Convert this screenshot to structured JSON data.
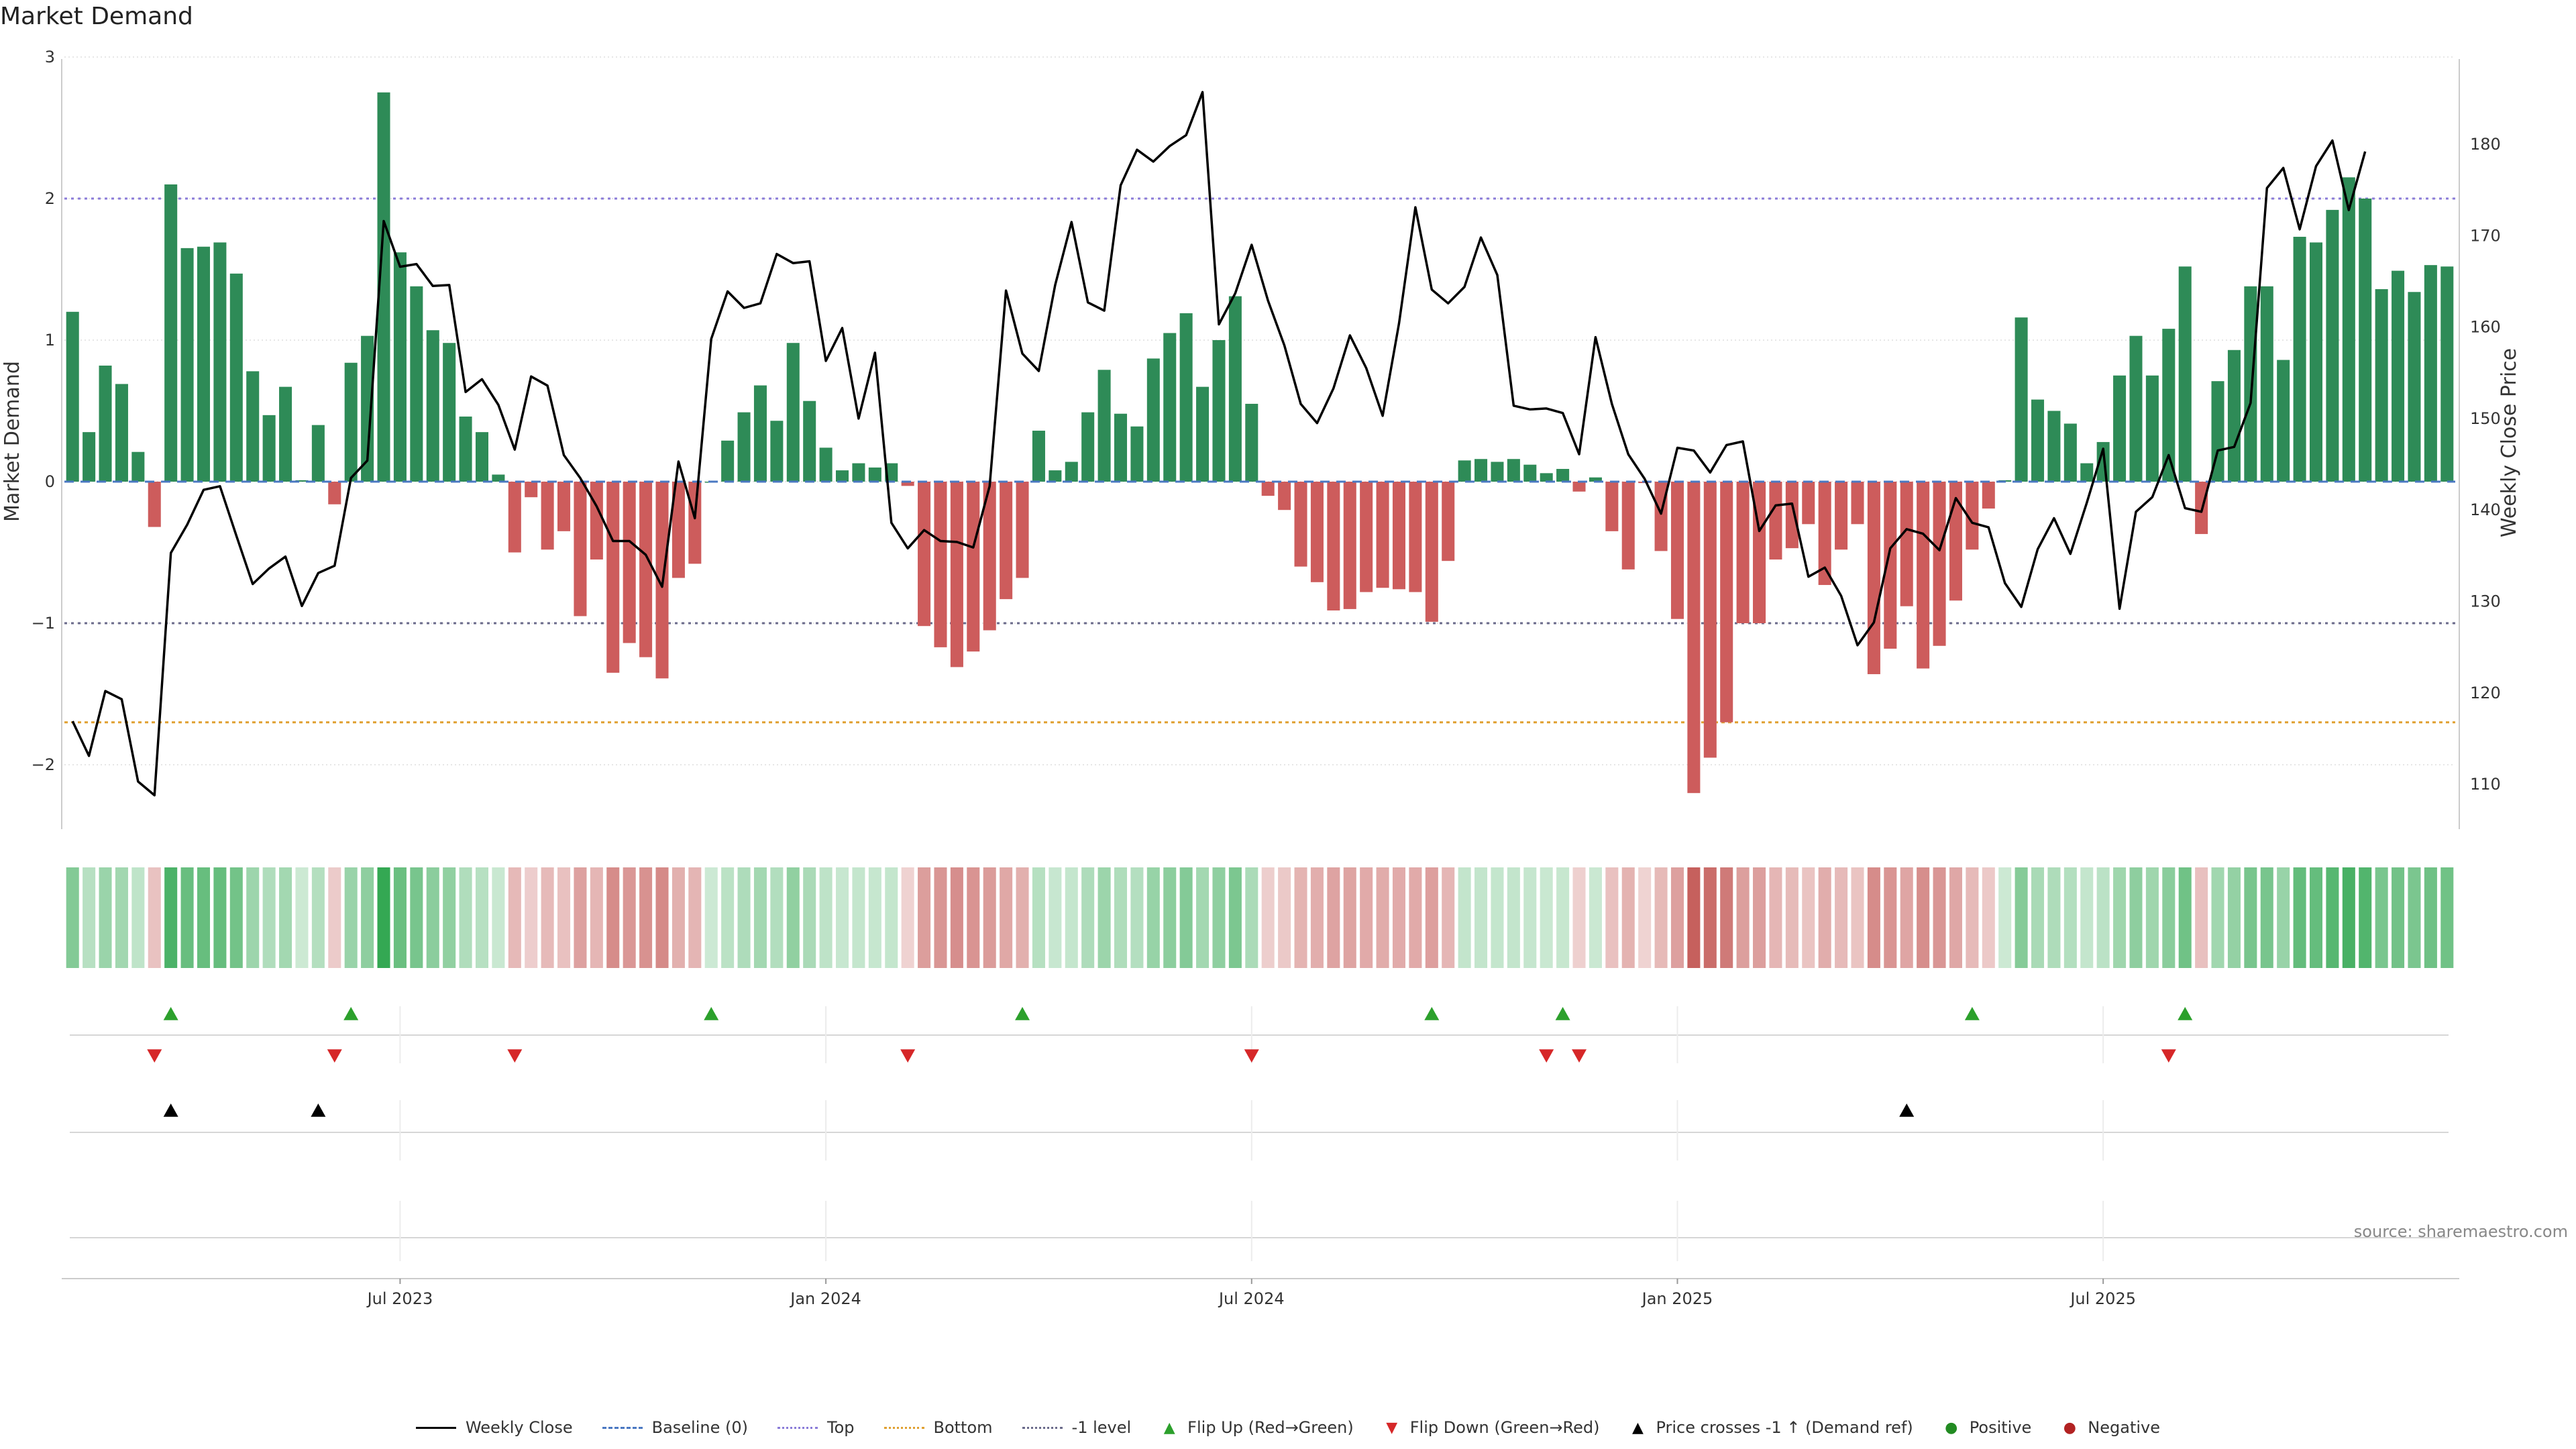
{
  "page": {
    "title": "Market Demand",
    "source": "source: sharemaestro.com"
  },
  "colors": {
    "positive": "#2e8b57",
    "negative": "#cd5c5c",
    "price": "#000000",
    "top": "#8a7bd8",
    "bottom": "#e0a030",
    "minus1": "#6a6a8a",
    "flip_up": "#2ca02c",
    "flip_down": "#d62728"
  },
  "chart_data": {
    "type": "bar",
    "title": "Market Demand",
    "ylabel": "Market Demand",
    "y2label": "Weekly Close Price",
    "ylim": [
      -2.5,
      3
    ],
    "y2lim": [
      103.8,
      189.9
    ],
    "y_ticks": [
      "3",
      "2",
      "1",
      "0",
      "−1",
      "−2"
    ],
    "y2_ticks": [
      "180",
      "170",
      "160",
      "150",
      "140",
      "130",
      "120",
      "110"
    ],
    "x_ticks": [
      "Jul 2023",
      "Jan 2024",
      "Jul 2024",
      "Jan 2025",
      "Jul 2025"
    ],
    "x_tick_weeks": [
      20,
      46,
      72,
      98,
      124
    ],
    "reference_lines": {
      "top": 2,
      "bottom": -1.7,
      "minus1": -1,
      "baseline": 0
    },
    "demand": [
      1.2,
      0.35,
      0.82,
      0.69,
      0.21,
      -0.32,
      2.1,
      1.65,
      1.66,
      1.69,
      1.47,
      0.78,
      0.47,
      0.67,
      0.01,
      0.4,
      -0.16,
      0.84,
      1.03,
      2.75,
      1.62,
      1.38,
      1.07,
      0.98,
      0.46,
      0.35,
      0.05,
      -0.5,
      -0.11,
      -0.48,
      -0.35,
      -0.95,
      -0.55,
      -1.35,
      -1.14,
      -1.24,
      -1.39,
      -0.68,
      -0.58,
      0.0,
      0.29,
      0.49,
      0.68,
      0.43,
      0.98,
      0.57,
      0.24,
      0.08,
      0.13,
      0.1,
      0.13,
      -0.03,
      -1.02,
      -1.17,
      -1.31,
      -1.2,
      -1.05,
      -0.83,
      -0.68,
      0.36,
      0.08,
      0.14,
      0.49,
      0.79,
      0.48,
      0.39,
      0.87,
      1.05,
      1.19,
      0.67,
      1.0,
      1.31,
      0.55,
      -0.1,
      -0.2,
      -0.6,
      -0.71,
      -0.91,
      -0.9,
      -0.78,
      -0.75,
      -0.76,
      -0.78,
      -0.99,
      -0.56,
      0.15,
      0.16,
      0.14,
      0.16,
      0.12,
      0.06,
      0.09,
      -0.07,
      0.03,
      -0.35,
      -0.62,
      -0.01,
      -0.49,
      -0.97,
      -2.2,
      -1.95,
      -1.7,
      -1.0,
      -1.0,
      -0.55,
      -0.47,
      -0.3,
      -0.73,
      -0.48,
      -0.3,
      -1.36,
      -1.18,
      -0.88,
      -1.32,
      -1.16,
      -0.84,
      -0.48,
      -0.19,
      0.01,
      1.16,
      0.58,
      0.5,
      0.41,
      0.13,
      0.28,
      0.75,
      1.03,
      0.75,
      1.08,
      1.52,
      -0.37,
      0.71,
      0.93,
      1.38,
      1.38,
      0.86,
      1.73,
      1.69,
      1.92,
      2.15,
      2.0,
      1.36,
      1.49,
      1.34,
      1.53,
      1.52
    ],
    "weekly_close": [
      116.9,
      113.1,
      120.2,
      119.3,
      110.3,
      108.8,
      135.3,
      138.4,
      142.2,
      142.6,
      137.2,
      131.9,
      133.6,
      134.9,
      129.5,
      133.1,
      133.9,
      143.5,
      145.4,
      171.6,
      166.6,
      166.9,
      164.5,
      164.6,
      152.9,
      154.3,
      151.5,
      146.6,
      154.6,
      153.6,
      146.0,
      143.5,
      140.4,
      136.6,
      136.6,
      135.1,
      131.6,
      145.3,
      139.1,
      158.7,
      163.9,
      162.1,
      162.6,
      168.0,
      167.0,
      167.2,
      156.3,
      159.9,
      150.0,
      157.2,
      138.6,
      135.8,
      137.8,
      136.6,
      136.5,
      135.9,
      142.6,
      164.0,
      157.1,
      155.2,
      164.6,
      171.5,
      162.7,
      161.8,
      175.5,
      179.4,
      178.1,
      179.8,
      181.0,
      185.7,
      160.3,
      163.7,
      169.0,
      162.9,
      158.0,
      151.6,
      149.5,
      153.3,
      159.1,
      155.5,
      150.3,
      160.4,
      173.1,
      164.1,
      162.6,
      164.4,
      169.8,
      165.7,
      151.4,
      151.0,
      151.1,
      150.6,
      146.1,
      158.9,
      151.6,
      146.1,
      143.4,
      139.6,
      146.8,
      146.5,
      144.1,
      147.1,
      147.5,
      137.7,
      140.5,
      140.7,
      132.7,
      133.7,
      130.6,
      125.2,
      127.7,
      135.8,
      137.9,
      137.4,
      135.6,
      141.3,
      138.6,
      138.1,
      132.0,
      129.4,
      135.7,
      139.1,
      135.2,
      140.8,
      146.7,
      129.2,
      139.8,
      141.4,
      146.0,
      140.2,
      139.8,
      146.5,
      146.9,
      151.7,
      175.2,
      177.4,
      170.7,
      177.6,
      180.4,
      172.8,
      179.2
    ],
    "flip_up_weeks": [
      6,
      17,
      39,
      58,
      83,
      91,
      116,
      129
    ],
    "flip_down_weeks": [
      5,
      16,
      27,
      51,
      72,
      90,
      92,
      128
    ],
    "price_cross_weeks": [
      6,
      15,
      112
    ]
  },
  "legend": [
    {
      "label": "Weekly Close",
      "kind": "line",
      "color": "#000000"
    },
    {
      "label": "Baseline (0)",
      "kind": "dash",
      "color": "#4a78c2"
    },
    {
      "label": "Top",
      "kind": "dot",
      "color": "#8a7bd8"
    },
    {
      "label": "Bottom",
      "kind": "dot",
      "color": "#e0a030"
    },
    {
      "label": "-1 level",
      "kind": "dot",
      "color": "#6a6a8a"
    },
    {
      "label": "Flip Up (Red→Green)",
      "kind": "tri-up",
      "color": "#2ca02c"
    },
    {
      "label": "Flip Down (Green→Red)",
      "kind": "tri-down",
      "color": "#d62728"
    },
    {
      "label": "Price crosses -1 ↑ (Demand ref)",
      "kind": "tri-up",
      "color": "#000000"
    },
    {
      "label": "Positive",
      "kind": "dot-marker",
      "color": "#228b22"
    },
    {
      "label": "Negative",
      "kind": "dot-marker",
      "color": "#b22222"
    }
  ]
}
